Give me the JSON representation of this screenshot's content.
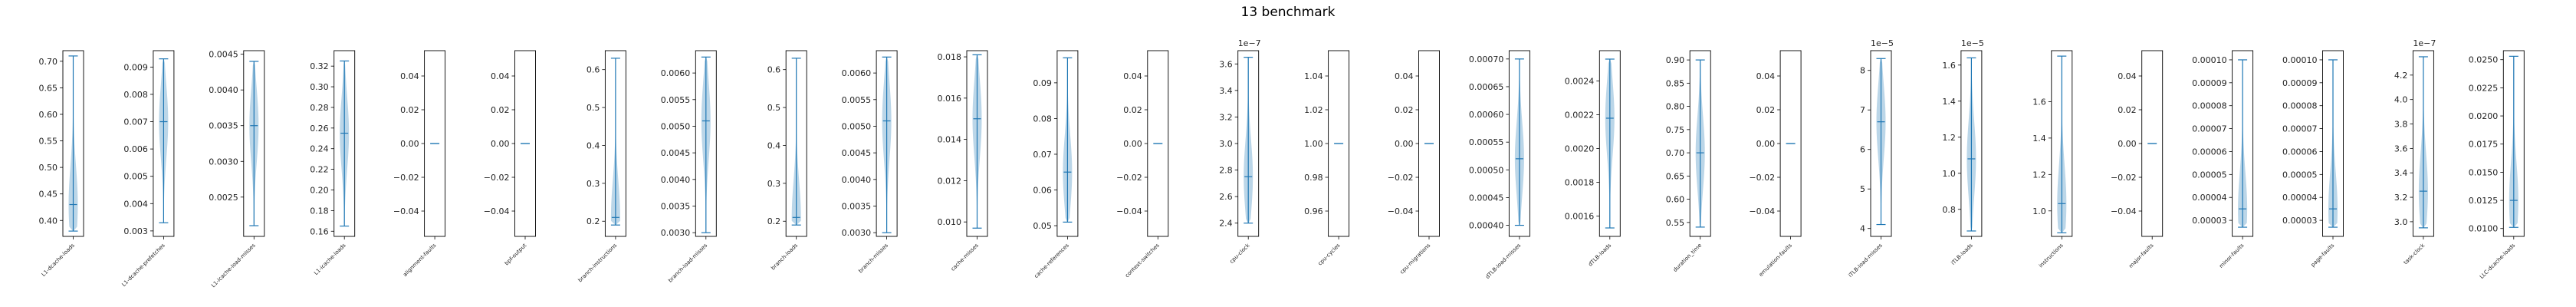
{
  "chart_data": {
    "type": "violin",
    "title": "13 benchmark",
    "colors": {
      "line": "#1f77b4",
      "fill": "#1f77b4",
      "axis": "#000000"
    },
    "panels": [
      {
        "label": "L1-dcache-loads",
        "ylim": [
          0.37,
          0.72
        ],
        "ticks": [
          0.4,
          0.45,
          0.5,
          0.55,
          0.6,
          0.65,
          0.7
        ],
        "ticklabels": [
          "0.40",
          "0.45",
          "0.50",
          "0.55",
          "0.60",
          "0.65",
          "0.70"
        ],
        "multiplier": "",
        "min": 0.38,
        "max": 0.71,
        "median": 0.43,
        "peak": 0.43,
        "skew": "low"
      },
      {
        "label": "L1-dcache-prefetches",
        "ylim": [
          0.0028,
          0.0096
        ],
        "ticks": [
          0.003,
          0.004,
          0.005,
          0.006,
          0.007,
          0.008,
          0.009
        ],
        "ticklabels": [
          "0.003",
          "0.004",
          "0.005",
          "0.006",
          "0.007",
          "0.008",
          "0.009"
        ],
        "multiplier": "",
        "min": 0.0033,
        "max": 0.0093,
        "median": 0.007,
        "peak": 0.007,
        "skew": "mid"
      },
      {
        "label": "L1-icache-load-misses",
        "ylim": [
          0.00195,
          0.00455
        ],
        "ticks": [
          0.0025,
          0.003,
          0.0035,
          0.004,
          0.0045
        ],
        "ticklabels": [
          "0.0025",
          "0.0030",
          "0.0035",
          "0.0040",
          "0.0045"
        ],
        "multiplier": "",
        "min": 0.0021,
        "max": 0.0044,
        "median": 0.0035,
        "peak": 0.0035,
        "skew": "mid"
      },
      {
        "label": "L1-icache-loads",
        "ylim": [
          0.155,
          0.335
        ],
        "ticks": [
          0.16,
          0.18,
          0.2,
          0.22,
          0.24,
          0.26,
          0.28,
          0.3,
          0.32
        ],
        "ticklabels": [
          "0.16",
          "0.18",
          "0.20",
          "0.22",
          "0.24",
          "0.26",
          "0.28",
          "0.30",
          "0.32"
        ],
        "multiplier": "",
        "min": 0.165,
        "max": 0.325,
        "median": 0.255,
        "peak": 0.255,
        "skew": "mid"
      },
      {
        "label": "alignment-faults",
        "ylim": [
          -0.055,
          0.055
        ],
        "ticks": [
          -0.04,
          -0.02,
          0.0,
          0.02,
          0.04
        ],
        "ticklabels": [
          "−0.04",
          "−0.02",
          "0.00",
          "0.02",
          "0.04"
        ],
        "multiplier": "",
        "min": 0,
        "max": 0,
        "median": 0,
        "peak": 0,
        "skew": "flat"
      },
      {
        "label": "bpf-output",
        "ylim": [
          -0.055,
          0.055
        ],
        "ticks": [
          -0.04,
          -0.02,
          0.0,
          0.02,
          0.04
        ],
        "ticklabels": [
          "−0.04",
          "−0.02",
          "0.00",
          "0.02",
          "0.04"
        ],
        "multiplier": "",
        "min": 0,
        "max": 0,
        "median": 0,
        "peak": 0,
        "skew": "flat"
      },
      {
        "label": "branch-instructions",
        "ylim": [
          0.16,
          0.65
        ],
        "ticks": [
          0.2,
          0.3,
          0.4,
          0.5,
          0.6
        ],
        "ticklabels": [
          "0.2",
          "0.3",
          "0.4",
          "0.5",
          "0.6"
        ],
        "multiplier": "",
        "min": 0.19,
        "max": 0.63,
        "median": 0.21,
        "peak": 0.21,
        "skew": "low"
      },
      {
        "label": "branch-load-misses",
        "ylim": [
          0.00293,
          0.00642
        ],
        "ticks": [
          0.003,
          0.0035,
          0.004,
          0.0045,
          0.005,
          0.0055,
          0.006
        ],
        "ticklabels": [
          "0.0030",
          "0.0035",
          "0.0040",
          "0.0045",
          "0.0050",
          "0.0055",
          "0.0060"
        ],
        "multiplier": "",
        "min": 0.003,
        "max": 0.0063,
        "median": 0.0051,
        "peak": 0.0051,
        "skew": "mid"
      },
      {
        "label": "branch-loads",
        "ylim": [
          0.16,
          0.65
        ],
        "ticks": [
          0.2,
          0.3,
          0.4,
          0.5,
          0.6
        ],
        "ticklabels": [
          "0.2",
          "0.3",
          "0.4",
          "0.5",
          "0.6"
        ],
        "multiplier": "",
        "min": 0.19,
        "max": 0.63,
        "median": 0.21,
        "peak": 0.21,
        "skew": "low"
      },
      {
        "label": "branch-misses",
        "ylim": [
          0.00293,
          0.00642
        ],
        "ticks": [
          0.003,
          0.0035,
          0.004,
          0.0045,
          0.005,
          0.0055,
          0.006
        ],
        "ticklabels": [
          "0.0030",
          "0.0035",
          "0.0040",
          "0.0045",
          "0.0050",
          "0.0055",
          "0.0060"
        ],
        "multiplier": "",
        "min": 0.003,
        "max": 0.0063,
        "median": 0.0051,
        "peak": 0.0051,
        "skew": "mid"
      },
      {
        "label": "cache-misses",
        "ylim": [
          0.0093,
          0.0183
        ],
        "ticks": [
          0.01,
          0.012,
          0.014,
          0.016,
          0.018
        ],
        "ticklabels": [
          "0.010",
          "0.012",
          "0.014",
          "0.016",
          "0.018"
        ],
        "multiplier": "",
        "min": 0.0097,
        "max": 0.0181,
        "median": 0.015,
        "peak": 0.015,
        "skew": "mid"
      },
      {
        "label": "cache-references",
        "ylim": [
          0.047,
          0.099
        ],
        "ticks": [
          0.05,
          0.06,
          0.07,
          0.08,
          0.09
        ],
        "ticklabels": [
          "0.05",
          "0.06",
          "0.07",
          "0.08",
          "0.09"
        ],
        "multiplier": "",
        "min": 0.051,
        "max": 0.097,
        "median": 0.065,
        "peak": 0.065,
        "skew": "low"
      },
      {
        "label": "context-switches",
        "ylim": [
          -0.055,
          0.055
        ],
        "ticks": [
          -0.04,
          -0.02,
          0.0,
          0.02,
          0.04
        ],
        "ticklabels": [
          "−0.04",
          "−0.02",
          "0.00",
          "0.02",
          "0.04"
        ],
        "multiplier": "",
        "min": 0,
        "max": 0,
        "median": 0,
        "peak": 0,
        "skew": "flat"
      },
      {
        "label": "cpu-clock",
        "ylim": [
          2.3,
          3.7
        ],
        "ticks": [
          2.4,
          2.6,
          2.8,
          3.0,
          3.2,
          3.4,
          3.6
        ],
        "ticklabels": [
          "2.4",
          "2.6",
          "2.8",
          "3.0",
          "3.2",
          "3.4",
          "3.6"
        ],
        "multiplier": "1e−7",
        "min": 2.4,
        "max": 3.65,
        "median": 2.75,
        "peak": 2.75,
        "skew": "low"
      },
      {
        "label": "cpu-cycles",
        "ylim": [
          0.945,
          1.055
        ],
        "ticks": [
          0.96,
          0.98,
          1.0,
          1.02,
          1.04
        ],
        "ticklabels": [
          "0.96",
          "0.98",
          "1.00",
          "1.02",
          "1.04"
        ],
        "multiplier": "",
        "min": 1,
        "max": 1,
        "median": 1,
        "peak": 1,
        "skew": "flat"
      },
      {
        "label": "cpu-migrations",
        "ylim": [
          -0.055,
          0.055
        ],
        "ticks": [
          -0.04,
          -0.02,
          0.0,
          0.02,
          0.04
        ],
        "ticklabels": [
          "−0.04",
          "−0.02",
          "0.00",
          "0.02",
          "0.04"
        ],
        "multiplier": "",
        "min": 0,
        "max": 0,
        "median": 0,
        "peak": 0,
        "skew": "flat"
      },
      {
        "label": "dTLB-load-misses",
        "ylim": [
          0.00038,
          0.000715
        ],
        "ticks": [
          0.0004,
          0.00045,
          0.0005,
          0.00055,
          0.0006,
          0.00065,
          0.0007
        ],
        "ticklabels": [
          "0.00040",
          "0.00045",
          "0.00050",
          "0.00055",
          "0.00060",
          "0.00065",
          "0.00070"
        ],
        "multiplier": "",
        "min": 0.0004,
        "max": 0.0007,
        "median": 0.00052,
        "peak": 0.00052,
        "skew": "low"
      },
      {
        "label": "dTLB-loads",
        "ylim": [
          0.00148,
          0.00258
        ],
        "ticks": [
          0.0016,
          0.0018,
          0.002,
          0.0022,
          0.0024
        ],
        "ticklabels": [
          "0.0016",
          "0.0018",
          "0.0020",
          "0.0022",
          "0.0024"
        ],
        "multiplier": "",
        "min": 0.00153,
        "max": 0.00253,
        "median": 0.00218,
        "peak": 0.00218,
        "skew": "mid"
      },
      {
        "label": "duration_time",
        "ylim": [
          0.52,
          0.92
        ],
        "ticks": [
          0.55,
          0.6,
          0.65,
          0.7,
          0.75,
          0.8,
          0.85,
          0.9
        ],
        "ticklabels": [
          "0.55",
          "0.60",
          "0.65",
          "0.70",
          "0.75",
          "0.80",
          "0.85",
          "0.90"
        ],
        "multiplier": "",
        "min": 0.54,
        "max": 0.9,
        "median": 0.7,
        "peak": 0.7,
        "skew": "mid"
      },
      {
        "label": "emulation-faults",
        "ylim": [
          -0.055,
          0.055
        ],
        "ticks": [
          -0.04,
          -0.02,
          0.0,
          0.02,
          0.04
        ],
        "ticklabels": [
          "−0.04",
          "−0.02",
          "0.00",
          "0.02",
          "0.04"
        ],
        "multiplier": "",
        "min": 0,
        "max": 0,
        "median": 0,
        "peak": 0,
        "skew": "flat"
      },
      {
        "label": "iTLB-load-misses",
        "ylim": [
          3.8,
          8.5
        ],
        "ticks": [
          4,
          5,
          6,
          7,
          8
        ],
        "ticklabels": [
          "4",
          "5",
          "6",
          "7",
          "8"
        ],
        "multiplier": "1e−5",
        "min": 4.1,
        "max": 8.3,
        "median": 6.7,
        "peak": 6.7,
        "skew": "mid"
      },
      {
        "label": "iTLB-loads",
        "ylim": [
          0.65,
          1.68
        ],
        "ticks": [
          0.8,
          1.0,
          1.2,
          1.4,
          1.6
        ],
        "ticklabels": [
          "0.8",
          "1.0",
          "1.2",
          "1.4",
          "1.6"
        ],
        "multiplier": "1e−5",
        "min": 0.68,
        "max": 1.64,
        "median": 1.08,
        "peak": 1.08,
        "skew": "mid"
      },
      {
        "label": "instructions",
        "ylim": [
          0.86,
          1.88
        ],
        "ticks": [
          1.0,
          1.2,
          1.4,
          1.6
        ],
        "ticklabels": [
          "1.0",
          "1.2",
          "1.4",
          "1.6"
        ],
        "multiplier": "",
        "min": 0.88,
        "max": 1.85,
        "median": 1.04,
        "peak": 1.04,
        "skew": "low"
      },
      {
        "label": "major-faults",
        "ylim": [
          -0.055,
          0.055
        ],
        "ticks": [
          -0.04,
          -0.02,
          0.0,
          0.02,
          0.04
        ],
        "ticklabels": [
          "−0.04",
          "−0.02",
          "0.00",
          "0.02",
          "0.04"
        ],
        "multiplier": "",
        "min": 0,
        "max": 0,
        "median": 0,
        "peak": 0,
        "skew": "flat"
      },
      {
        "label": "minor-faults",
        "ylim": [
          2.3e-05,
          0.000104
        ],
        "ticks": [
          3e-05,
          4e-05,
          5e-05,
          6e-05,
          7e-05,
          8e-05,
          9e-05,
          0.0001
        ],
        "ticklabels": [
          "0.00003",
          "0.00004",
          "0.00005",
          "0.00006",
          "0.00007",
          "0.00008",
          "0.00009",
          "0.00010"
        ],
        "multiplier": "",
        "min": 2.7e-05,
        "max": 0.0001,
        "median": 3.5e-05,
        "peak": 3.5e-05,
        "skew": "low"
      },
      {
        "label": "page-faults",
        "ylim": [
          2.3e-05,
          0.000104
        ],
        "ticks": [
          3e-05,
          4e-05,
          5e-05,
          6e-05,
          7e-05,
          8e-05,
          9e-05,
          0.0001
        ],
        "ticklabels": [
          "0.00003",
          "0.00004",
          "0.00005",
          "0.00006",
          "0.00007",
          "0.00008",
          "0.00009",
          "0.00010"
        ],
        "multiplier": "",
        "min": 2.7e-05,
        "max": 0.0001,
        "median": 3.5e-05,
        "peak": 3.5e-05,
        "skew": "low"
      },
      {
        "label": "task-clock",
        "ylim": [
          2.88,
          4.4
        ],
        "ticks": [
          3.0,
          3.2,
          3.4,
          3.6,
          3.8,
          4.0,
          4.2
        ],
        "ticklabels": [
          "3.0",
          "3.2",
          "3.4",
          "3.6",
          "3.8",
          "4.0",
          "4.2"
        ],
        "multiplier": "1e−7",
        "min": 2.95,
        "max": 4.35,
        "median": 3.25,
        "peak": 3.25,
        "skew": "low"
      },
      {
        "label": "LLC-dcache-loads",
        "ylim": [
          0.0093,
          0.0258
        ],
        "ticks": [
          0.01,
          0.0125,
          0.015,
          0.0175,
          0.02,
          0.0225,
          0.025
        ],
        "ticklabels": [
          "0.0100",
          "0.0125",
          "0.0150",
          "0.0175",
          "0.0200",
          "0.0225",
          "0.0250"
        ],
        "multiplier": "",
        "min": 0.0101,
        "max": 0.0253,
        "median": 0.0125,
        "peak": 0.0125,
        "skew": "low"
      }
    ]
  }
}
